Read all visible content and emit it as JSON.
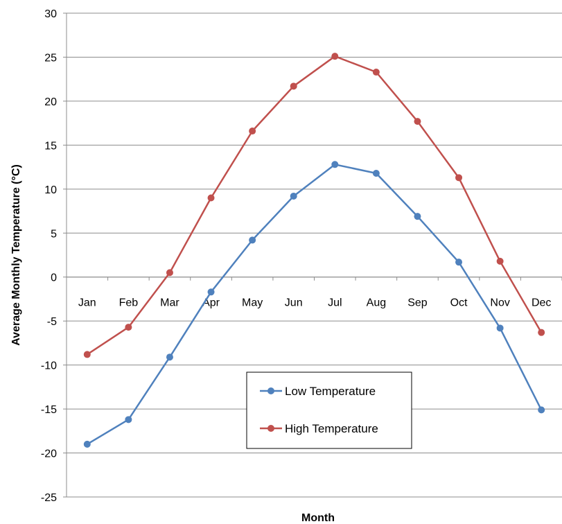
{
  "chart_data": {
    "type": "line",
    "title": "",
    "xlabel": "Month",
    "ylabel": "Average Monthly Temperature (°C)",
    "categories": [
      "Jan",
      "Feb",
      "Mar",
      "Apr",
      "May",
      "Jun",
      "Jul",
      "Aug",
      "Sep",
      "Oct",
      "Nov",
      "Dec"
    ],
    "ylim": [
      -25,
      30
    ],
    "yticks": [
      30,
      25,
      20,
      15,
      10,
      5,
      0,
      -5,
      -10,
      -15,
      -20,
      -25
    ],
    "grid": true,
    "legend_position": "lower-center",
    "series": [
      {
        "name": "Low Temperature",
        "color": "#4F81BD",
        "values": [
          -19.0,
          -16.2,
          -9.1,
          -1.7,
          4.2,
          9.2,
          12.8,
          11.8,
          6.9,
          1.7,
          -5.8,
          -15.1
        ]
      },
      {
        "name": "High Temperature",
        "color": "#C0504D",
        "values": [
          -8.8,
          -5.7,
          0.5,
          9.0,
          16.6,
          21.7,
          25.1,
          23.3,
          17.7,
          11.3,
          1.8,
          -6.3
        ]
      }
    ]
  }
}
